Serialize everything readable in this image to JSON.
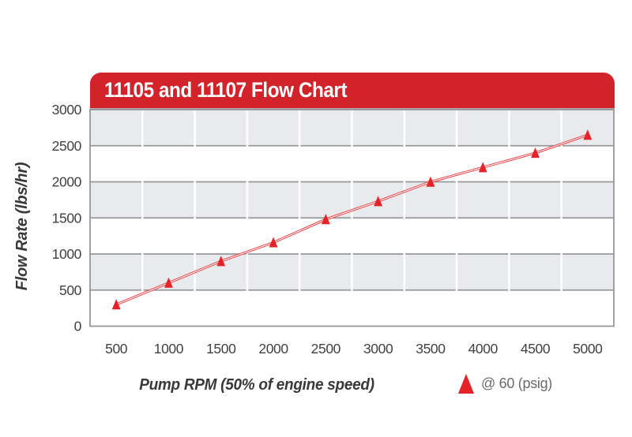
{
  "header": {
    "title": "11105 and 11107 Flow Chart"
  },
  "chart_data": {
    "type": "line",
    "title": "11105 and 11107 Flow Chart",
    "xlabel": "Pump RPM (50% of engine speed)",
    "ylabel": "Flow Rate (lbs/hr)",
    "x": [
      500,
      1000,
      1500,
      2000,
      2500,
      3000,
      3500,
      4000,
      4500,
      5000
    ],
    "series": [
      {
        "name": "@ 60 (psig)",
        "marker": "triangle-up",
        "values": [
          300,
          600,
          900,
          1160,
          1480,
          1730,
          2000,
          2200,
          2400,
          2650
        ]
      }
    ],
    "ylim": [
      0,
      3000
    ],
    "y_ticks": [
      0,
      500,
      1000,
      1500,
      2000,
      2500,
      3000
    ],
    "y_tick_labels": [
      "0",
      "500",
      "1000",
      "1500",
      "2000",
      "2500",
      "3000"
    ],
    "x_tick_labels": [
      "500",
      "1000",
      "1500",
      "2000",
      "2500",
      "3000",
      "3500",
      "4000",
      "4500",
      "5000"
    ],
    "grid": "alternating horizontal bands with white column separators",
    "legend_position": "bottom-right"
  },
  "legend": {
    "label": "@ 60 (psig)",
    "marker_icon": "triangle-up-icon"
  },
  "colors": {
    "banner_red": "#d2232a",
    "line_red": "#ee3b40",
    "marker_red": "#e42328",
    "band_gray": "#e9eaed",
    "grid_line_gray": "#96979b",
    "tick_text": "#414042",
    "axis_title_text": "#39393b",
    "legend_text": "#6a6b6e",
    "white": "#ffffff"
  }
}
